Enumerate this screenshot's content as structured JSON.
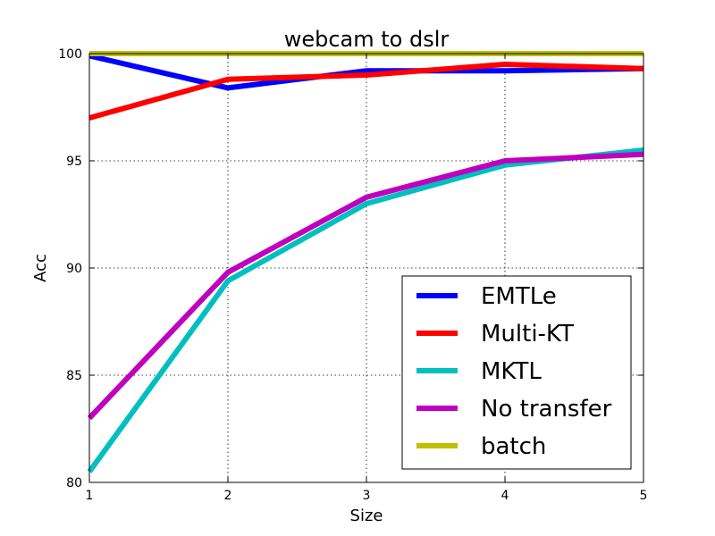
{
  "chart_data": {
    "type": "line",
    "title": "webcam to dslr",
    "xlabel": "Size",
    "ylabel": "Acc",
    "x": [
      1,
      2,
      3,
      4,
      5
    ],
    "xlim": [
      1,
      5
    ],
    "ylim": [
      80,
      100
    ],
    "xticks": [
      "1",
      "2",
      "3",
      "4",
      "5"
    ],
    "yticks": [
      "80",
      "85",
      "90",
      "95",
      "100"
    ],
    "grid": true,
    "legend_position": "lower-right",
    "series": [
      {
        "name": "EMTLe",
        "color": "#0000ff",
        "values": [
          99.9,
          98.4,
          99.2,
          99.2,
          99.3
        ]
      },
      {
        "name": "Multi-KT",
        "color": "#ff0000",
        "values": [
          97.0,
          98.8,
          99.0,
          99.5,
          99.3
        ]
      },
      {
        "name": "MKTL",
        "color": "#00bfbf",
        "values": [
          80.5,
          89.4,
          93.0,
          94.8,
          95.5
        ]
      },
      {
        "name": "No transfer",
        "color": "#bf00bf",
        "values": [
          83.0,
          89.8,
          93.3,
          95.0,
          95.3
        ]
      },
      {
        "name": "batch",
        "color": "#bfbf00",
        "values": [
          100,
          100,
          100,
          100,
          100
        ]
      }
    ]
  }
}
